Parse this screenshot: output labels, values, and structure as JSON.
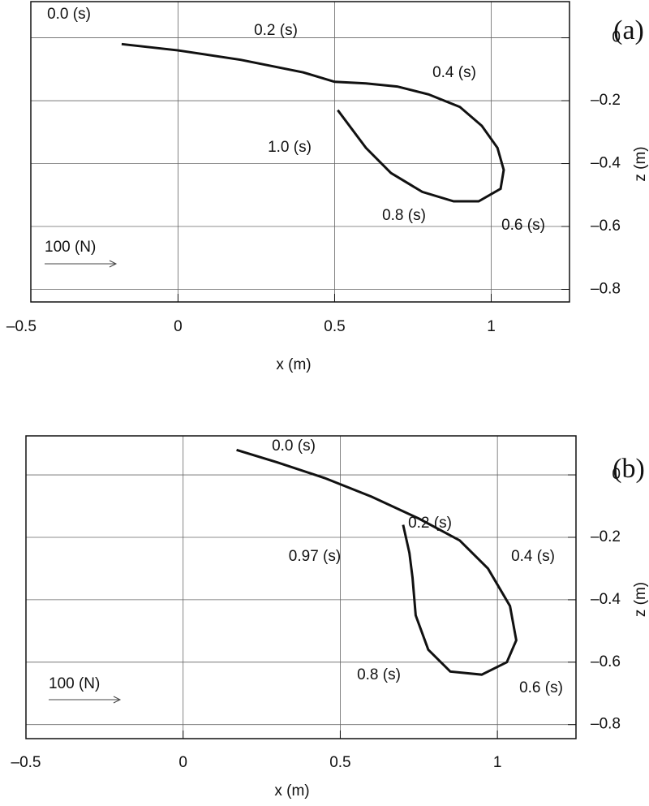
{
  "chart_data": [
    {
      "type": "line",
      "title": "(a)",
      "xlabel": "x (m)",
      "ylabel": "z (m)",
      "color": "#111111",
      "x": [
        -0.18,
        0,
        0.2,
        0.4,
        0.5,
        0.6,
        0.7,
        0.8,
        0.9,
        0.97,
        1.02,
        1.04,
        1.03,
        0.96,
        0.88,
        0.78,
        0.68,
        0.6,
        0.51
      ],
      "values": [
        -0.02,
        -0.04,
        -0.07,
        -0.11,
        -0.14,
        -0.145,
        -0.155,
        -0.18,
        -0.22,
        -0.28,
        -0.35,
        -0.42,
        -0.48,
        -0.52,
        -0.52,
        -0.49,
        -0.43,
        -0.35,
        -0.23
      ],
      "annotations": [
        "0.0 (s)",
        "0.2 (s)",
        "0.4 (s)",
        "1.0 (s)",
        "0.8 (s)",
        "0.6 (s)"
      ],
      "scale_label": "100 (N)",
      "xlim": [
        -0.47,
        1.25
      ],
      "xticks": [
        {
          "value": -0.5,
          "label": "–0.5"
        },
        0,
        0.5,
        1
      ],
      "ylim": [
        -0.84,
        0.115
      ],
      "yticks": [
        0,
        {
          "value": -0.2,
          "label": "–0.2"
        },
        {
          "value": -0.4,
          "label": "–0.4"
        },
        {
          "value": -0.6,
          "label": "–0.6"
        },
        {
          "value": -0.8,
          "label": "–0.8"
        }
      ],
      "grid": true
    },
    {
      "type": "line",
      "title": "(b)",
      "xlabel": "x (m)",
      "ylabel": "z (m)",
      "color": "#111111",
      "x": [
        0.17,
        0.3,
        0.45,
        0.6,
        0.75,
        0.88,
        0.97,
        1.04,
        1.06,
        1.03,
        0.95,
        0.85,
        0.78,
        0.74,
        0.73,
        0.72,
        0.7
      ],
      "values": [
        0.08,
        0.04,
        -0.01,
        -0.07,
        -0.14,
        -0.21,
        -0.3,
        -0.42,
        -0.53,
        -0.6,
        -0.64,
        -0.63,
        -0.56,
        -0.45,
        -0.33,
        -0.25,
        -0.16
      ],
      "annotations": [
        "0.0 (s)",
        "0.2 (s)",
        "0.97 (s)",
        "0.4 (s)",
        "0.8 (s)",
        "0.6 (s)"
      ],
      "scale_label": "100 (N)",
      "xlim": [
        -0.5,
        1.25
      ],
      "xticks": [
        {
          "value": -0.5,
          "label": "–0.5"
        },
        0,
        0.5,
        1
      ],
      "ylim": [
        -0.845,
        0.125
      ],
      "yticks": [
        0,
        {
          "value": -0.2,
          "label": "–0.2"
        },
        {
          "value": -0.4,
          "label": "–0.4"
        },
        {
          "value": -0.6,
          "label": "–0.6"
        },
        {
          "value": -0.8,
          "label": "–0.8"
        }
      ],
      "grid": true
    }
  ]
}
